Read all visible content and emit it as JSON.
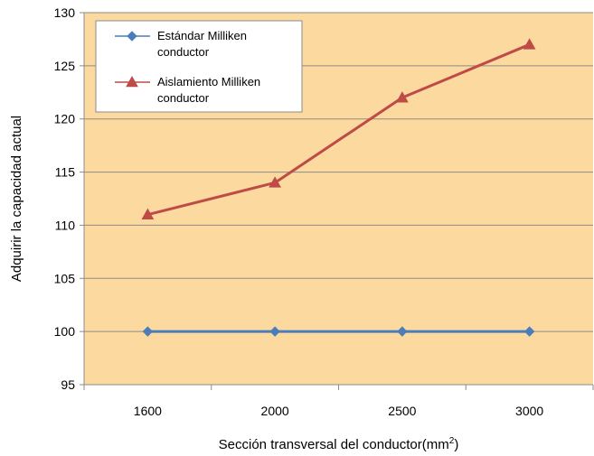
{
  "chart_data": {
    "type": "line",
    "categories": [
      "1600",
      "2000",
      "2500",
      "3000"
    ],
    "series": [
      {
        "name": "Estándar Milliken conductor",
        "name_lines": [
          "Estándar Milliken",
          "conductor"
        ],
        "values": [
          100,
          100,
          100,
          100
        ],
        "color": "#4a7ebb",
        "marker": "diamond"
      },
      {
        "name": "Aislamiento Milliken conductor",
        "name_lines": [
          "Aislamiento Milliken",
          "conductor"
        ],
        "values": [
          111,
          114,
          122,
          127
        ],
        "color": "#be4b48",
        "marker": "triangle"
      }
    ],
    "ylim": [
      95,
      130
    ],
    "yticks": [
      95,
      100,
      105,
      110,
      115,
      120,
      125,
      130
    ],
    "ylabel": "Adquirir la capacidad actual",
    "xlabel_main": "Sección transversal del conductor(mm",
    "xlabel_sup": "2",
    "xlabel_end": ")",
    "grid": true,
    "legend_position": "top-left",
    "plot_background": "#fcd99f"
  }
}
